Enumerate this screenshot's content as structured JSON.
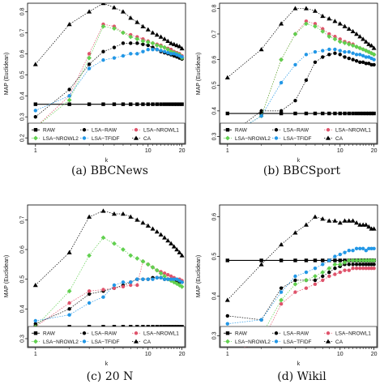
{
  "chart_data": [
    {
      "type": "line",
      "caption": "(a) BBCNews",
      "xlabel": "k",
      "ylabel": "MAP (Euclidean)",
      "xscale": "log",
      "xticks": [
        1,
        10,
        20
      ],
      "yticks": [
        0.2,
        0.3,
        0.4,
        0.5,
        0.6,
        0.7,
        0.8
      ],
      "ylim": [
        0.17,
        0.84
      ],
      "x": [
        1,
        2,
        3,
        4,
        5,
        6,
        7,
        8,
        9,
        10,
        11,
        12,
        13,
        14,
        15,
        16,
        17,
        18,
        19,
        20
      ],
      "series": [
        {
          "name": "RAW",
          "values": [
            0.36,
            0.36,
            0.36,
            0.36,
            0.36,
            0.36,
            0.36,
            0.36,
            0.36,
            0.36,
            0.36,
            0.36,
            0.36,
            0.36,
            0.36,
            0.36,
            0.36,
            0.36,
            0.36,
            0.36
          ]
        },
        {
          "name": "LSA−RAW",
          "values": [
            0.3,
            0.43,
            0.55,
            0.61,
            0.63,
            0.65,
            0.65,
            0.65,
            0.645,
            0.64,
            0.63,
            0.62,
            0.61,
            0.605,
            0.6,
            0.595,
            0.59,
            0.585,
            0.58,
            0.575
          ]
        },
        {
          "name": "LSA−NROWL1",
          "values": [
            0.25,
            0.4,
            0.6,
            0.74,
            0.73,
            0.7,
            0.69,
            0.68,
            0.67,
            0.66,
            0.65,
            0.645,
            0.64,
            0.63,
            0.625,
            0.62,
            0.61,
            0.605,
            0.6,
            0.59
          ]
        },
        {
          "name": "LSA−NROWL2",
          "values": [
            0.25,
            0.38,
            0.58,
            0.73,
            0.72,
            0.7,
            0.68,
            0.67,
            0.66,
            0.655,
            0.65,
            0.64,
            0.635,
            0.63,
            0.62,
            0.61,
            0.605,
            0.6,
            0.595,
            0.58
          ]
        },
        {
          "name": "LSA−TFIDF",
          "values": [
            0.33,
            0.4,
            0.53,
            0.57,
            0.58,
            0.59,
            0.6,
            0.6,
            0.61,
            0.62,
            0.62,
            0.62,
            0.615,
            0.61,
            0.605,
            0.6,
            0.6,
            0.595,
            0.59,
            0.585
          ]
        },
        {
          "name": "CA",
          "values": [
            0.55,
            0.74,
            0.8,
            0.84,
            0.82,
            0.8,
            0.77,
            0.75,
            0.73,
            0.715,
            0.7,
            0.69,
            0.68,
            0.67,
            0.66,
            0.65,
            0.645,
            0.64,
            0.635,
            0.625
          ]
        }
      ],
      "legend": "bottom"
    },
    {
      "type": "line",
      "caption": "(b) BBCSport",
      "xlabel": "k",
      "ylabel": "MAP (Euclidean)",
      "xscale": "log",
      "xticks": [
        1,
        10,
        20
      ],
      "yticks": [
        0.3,
        0.4,
        0.5,
        0.6,
        0.7,
        0.8
      ],
      "ylim": [
        0.27,
        0.82
      ],
      "x": [
        1,
        2,
        3,
        4,
        5,
        6,
        7,
        8,
        9,
        10,
        11,
        12,
        13,
        14,
        15,
        16,
        17,
        18,
        19,
        20
      ],
      "series": [
        {
          "name": "RAW",
          "values": [
            0.39,
            0.39,
            0.39,
            0.39,
            0.39,
            0.39,
            0.39,
            0.39,
            0.39,
            0.39,
            0.39,
            0.39,
            0.39,
            0.39,
            0.39,
            0.39,
            0.39,
            0.39,
            0.39,
            0.39
          ]
        },
        {
          "name": "LSA−RAW",
          "values": [
            0.3,
            0.4,
            0.4,
            0.44,
            0.52,
            0.59,
            0.61,
            0.62,
            0.625,
            0.62,
            0.61,
            0.605,
            0.6,
            0.595,
            0.59,
            0.59,
            0.585,
            0.585,
            0.58,
            0.58
          ]
        },
        {
          "name": "LSA−NROWL1",
          "values": [
            0.3,
            0.38,
            0.6,
            0.7,
            0.75,
            0.74,
            0.72,
            0.7,
            0.69,
            0.68,
            0.67,
            0.665,
            0.66,
            0.65,
            0.645,
            0.64,
            0.635,
            0.63,
            0.625,
            0.62
          ]
        },
        {
          "name": "LSA−NROWL2",
          "values": [
            0.3,
            0.38,
            0.6,
            0.7,
            0.74,
            0.73,
            0.71,
            0.69,
            0.68,
            0.67,
            0.665,
            0.66,
            0.655,
            0.65,
            0.645,
            0.64,
            0.635,
            0.63,
            0.625,
            0.62
          ]
        },
        {
          "name": "LSA−TFIDF",
          "values": [
            0.3,
            0.38,
            0.51,
            0.58,
            0.62,
            0.63,
            0.635,
            0.64,
            0.64,
            0.635,
            0.63,
            0.63,
            0.625,
            0.62,
            0.62,
            0.615,
            0.61,
            0.61,
            0.605,
            0.6
          ]
        },
        {
          "name": "CA",
          "values": [
            0.53,
            0.64,
            0.74,
            0.8,
            0.8,
            0.79,
            0.77,
            0.76,
            0.75,
            0.74,
            0.73,
            0.72,
            0.71,
            0.7,
            0.69,
            0.68,
            0.67,
            0.66,
            0.655,
            0.645
          ]
        }
      ],
      "legend": "bottom"
    },
    {
      "type": "line",
      "caption": "(c) 20 N",
      "xlabel": "k",
      "ylabel": "MAP (Euclidean)",
      "xscale": "log",
      "xticks": [
        1,
        10,
        20
      ],
      "yticks": [
        0.3,
        0.4,
        0.5,
        0.6,
        0.7
      ],
      "ylim": [
        0.27,
        0.75
      ],
      "x": [
        1,
        2,
        3,
        4,
        5,
        6,
        7,
        8,
        9,
        10,
        11,
        12,
        13,
        14,
        15,
        16,
        17,
        18,
        19,
        20
      ],
      "series": [
        {
          "name": "RAW",
          "values": [
            0.34,
            0.34,
            0.34,
            0.34,
            0.34,
            0.34,
            0.34,
            0.34,
            0.34,
            0.34,
            0.34,
            0.34,
            0.34,
            0.34,
            0.34,
            0.34,
            0.34,
            0.34,
            0.34,
            0.34
          ]
        },
        {
          "name": "LSA−RAW",
          "values": [
            0.35,
            0.4,
            0.45,
            0.46,
            0.47,
            0.48,
            0.49,
            0.5,
            0.5,
            0.5,
            0.505,
            0.505,
            0.505,
            0.5,
            0.5,
            0.5,
            0.495,
            0.495,
            0.49,
            0.49
          ]
        },
        {
          "name": "LSA−NROWL1",
          "values": [
            0.34,
            0.42,
            0.46,
            0.465,
            0.47,
            0.475,
            0.48,
            0.48,
            0.56,
            0.55,
            0.54,
            0.53,
            0.525,
            0.52,
            0.515,
            0.51,
            0.505,
            0.5,
            0.5,
            0.495
          ]
        },
        {
          "name": "LSA−NROWL2",
          "values": [
            0.34,
            0.46,
            0.58,
            0.64,
            0.62,
            0.6,
            0.58,
            0.57,
            0.56,
            0.55,
            0.54,
            0.53,
            0.52,
            0.51,
            0.5,
            0.495,
            0.49,
            0.485,
            0.48,
            0.475
          ]
        },
        {
          "name": "LSA−TFIDF",
          "values": [
            0.36,
            0.38,
            0.42,
            0.44,
            0.48,
            0.49,
            0.49,
            0.5,
            0.5,
            0.5,
            0.5,
            0.505,
            0.505,
            0.5,
            0.5,
            0.5,
            0.5,
            0.5,
            0.495,
            0.49
          ]
        },
        {
          "name": "CA",
          "values": [
            0.48,
            0.59,
            0.71,
            0.73,
            0.72,
            0.72,
            0.71,
            0.7,
            0.69,
            0.68,
            0.67,
            0.66,
            0.65,
            0.64,
            0.63,
            0.62,
            0.61,
            0.6,
            0.59,
            0.58
          ]
        }
      ],
      "legend": "bottom"
    },
    {
      "type": "line",
      "caption": "(d) Wikil",
      "xlabel": "k",
      "ylabel": "MAP (Euclidean)",
      "xscale": "log",
      "xticks": [
        1,
        10,
        20
      ],
      "yticks": [
        0.3,
        0.4,
        0.5,
        0.6
      ],
      "ylim": [
        0.27,
        0.63
      ],
      "x": [
        1,
        2,
        3,
        4,
        5,
        6,
        7,
        8,
        9,
        10,
        11,
        12,
        13,
        14,
        15,
        16,
        17,
        18,
        19,
        20
      ],
      "series": [
        {
          "name": "RAW",
          "values": [
            0.49,
            0.49,
            0.49,
            0.49,
            0.49,
            0.49,
            0.49,
            0.49,
            0.49,
            0.49,
            0.49,
            0.49,
            0.49,
            0.49,
            0.49,
            0.49,
            0.49,
            0.49,
            0.49,
            0.49
          ]
        },
        {
          "name": "LSA−RAW",
          "values": [
            0.35,
            0.34,
            0.42,
            0.44,
            0.44,
            0.44,
            0.45,
            0.46,
            0.47,
            0.475,
            0.48,
            0.48,
            0.48,
            0.48,
            0.48,
            0.48,
            0.48,
            0.48,
            0.48,
            0.48
          ]
        },
        {
          "name": "LSA−NROWL1",
          "values": [
            0.26,
            0.28,
            0.38,
            0.41,
            0.42,
            0.43,
            0.44,
            0.45,
            0.455,
            0.46,
            0.465,
            0.465,
            0.47,
            0.47,
            0.47,
            0.47,
            0.47,
            0.47,
            0.47,
            0.47
          ]
        },
        {
          "name": "LSA−NROWL2",
          "values": [
            0.28,
            0.3,
            0.39,
            0.43,
            0.44,
            0.45,
            0.46,
            0.47,
            0.48,
            0.48,
            0.485,
            0.49,
            0.49,
            0.49,
            0.49,
            0.49,
            0.49,
            0.49,
            0.49,
            0.49
          ]
        },
        {
          "name": "LSA−TFIDF",
          "values": [
            0.33,
            0.34,
            0.41,
            0.45,
            0.46,
            0.47,
            0.48,
            0.49,
            0.5,
            0.505,
            0.51,
            0.515,
            0.515,
            0.52,
            0.52,
            0.52,
            0.515,
            0.52,
            0.52,
            0.52
          ]
        },
        {
          "name": "CA",
          "values": [
            0.39,
            0.48,
            0.53,
            0.56,
            0.58,
            0.6,
            0.595,
            0.59,
            0.59,
            0.585,
            0.59,
            0.59,
            0.59,
            0.585,
            0.58,
            0.58,
            0.58,
            0.575,
            0.57,
            0.57
          ]
        }
      ],
      "legend": "bottom"
    }
  ],
  "style": {
    "colors": {
      "RAW": "#000000",
      "LSA−RAW": "#000000",
      "LSA−NROWL1": "#df536b",
      "LSA−NROWL2": "#61d04f",
      "LSA−TFIDF": "#2297e6",
      "CA": "#000000"
    },
    "markers": {
      "RAW": "square",
      "LSA−RAW": "circle",
      "LSA−NROWL1": "circle",
      "LSA−NROWL2": "diamond",
      "LSA−TFIDF": "circle",
      "CA": "triangle"
    }
  }
}
